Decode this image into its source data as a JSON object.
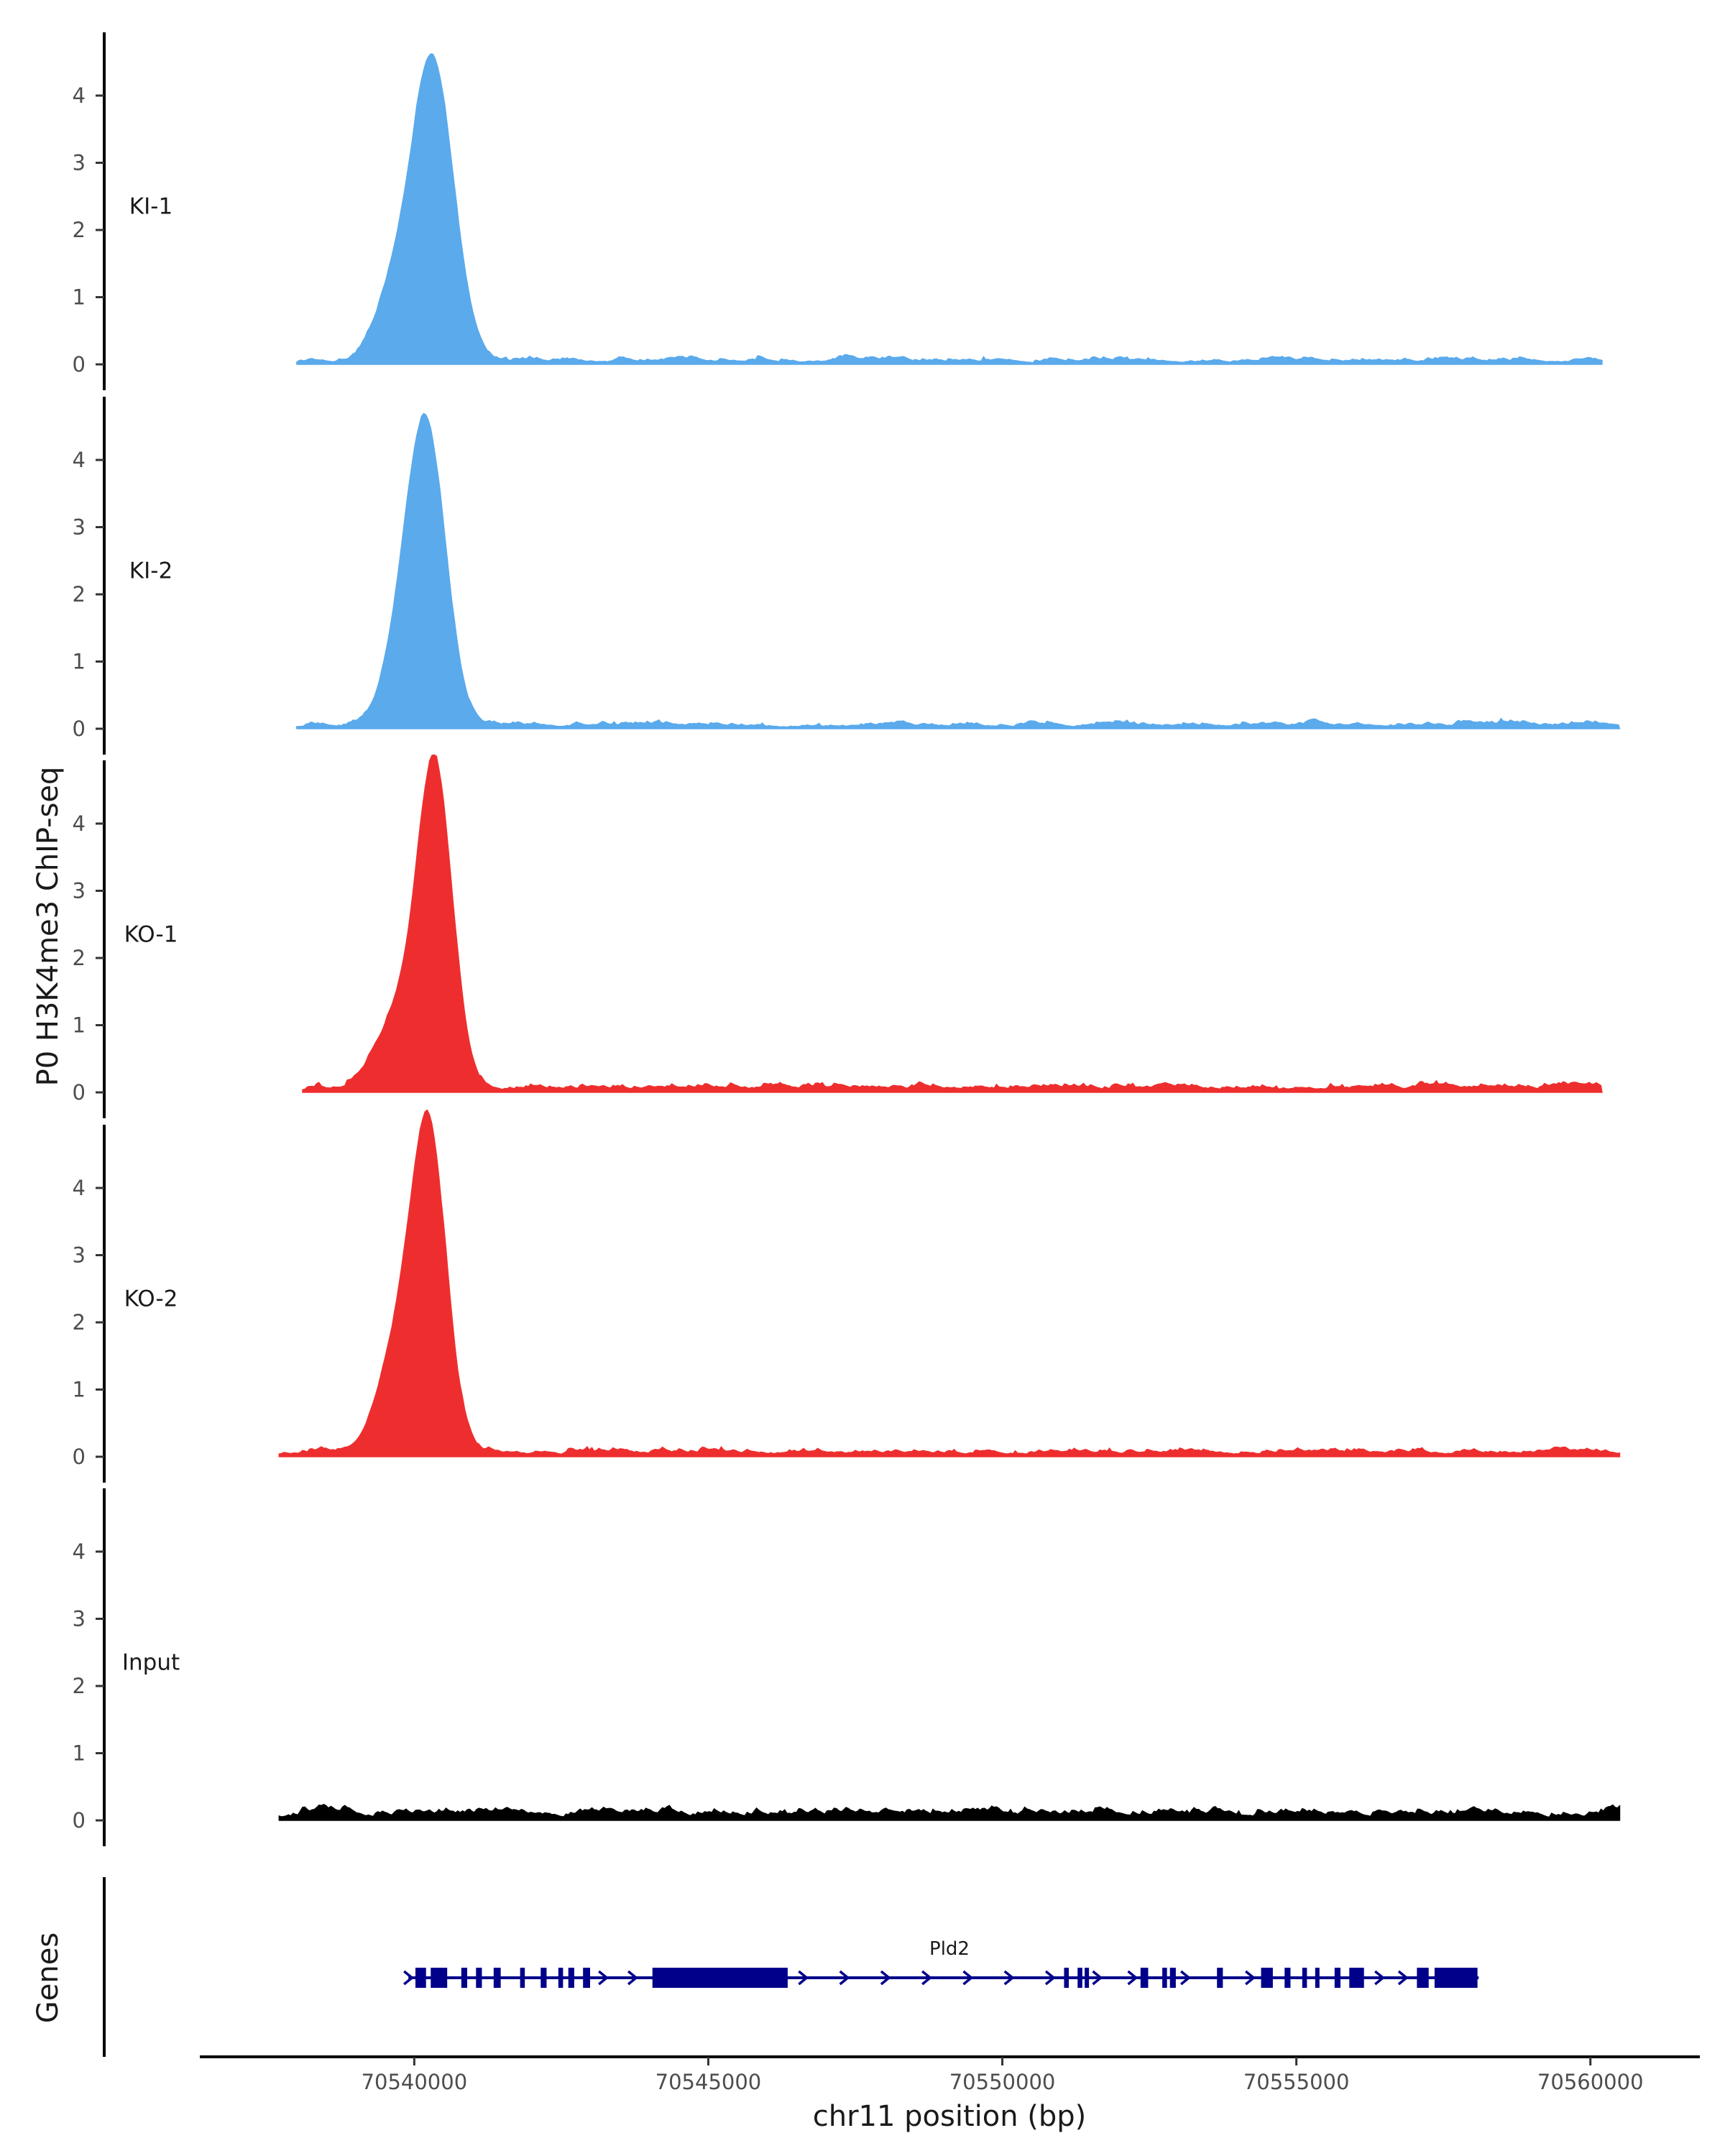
{
  "chart_data": {
    "type": "area",
    "ylabel": "P0 H3K4me3 ChIP-seq",
    "xlabel": "chr11 position (bp)",
    "ylim": [
      0,
      4.9
    ],
    "xlim": [
      70536500,
      70561800
    ],
    "y_ticks": [
      0,
      1,
      2,
      3,
      4
    ],
    "x_ticks": [
      70540000,
      70545000,
      70550000,
      70555000,
      70560000
    ],
    "x_tick_labels": [
      "70540000",
      "70545000",
      "70550000",
      "70555000",
      "70560000"
    ],
    "grid": false,
    "tracks": [
      {
        "name": "KI-1",
        "color": "#5AAAEC",
        "data_range": [
          70538000,
          70560200
        ],
        "peak_center": 70540300,
        "peak_height": 4.5,
        "peak_sigma": 360,
        "shoulder": {
          "x": 70539600,
          "height": 0.8,
          "sigma": 300
        },
        "noise": 0.05
      },
      {
        "name": "KI-2",
        "color": "#5AAAEC",
        "data_range": [
          70538000,
          70560500
        ],
        "peak_center": 70540200,
        "peak_height": 4.45,
        "peak_sigma": 330,
        "shoulder": {
          "x": 70539700,
          "height": 0.7,
          "sigma": 280
        },
        "noise": 0.05
      },
      {
        "name": "KO-1",
        "color": "#EE2E2E",
        "data_range": [
          70538100,
          70560200
        ],
        "peak_center": 70540350,
        "peak_height": 4.7,
        "peak_sigma": 300,
        "shoulder": {
          "x": 70539700,
          "height": 1.0,
          "sigma": 380
        },
        "noise": 0.06
      },
      {
        "name": "KO-2",
        "color": "#EE2E2E",
        "data_range": [
          70537700,
          70560500
        ],
        "peak_center": 70540250,
        "peak_height": 4.6,
        "peak_sigma": 300,
        "shoulder": {
          "x": 70539700,
          "height": 1.4,
          "sigma": 350
        },
        "noise": 0.06
      },
      {
        "name": "Input",
        "color": "#000000",
        "data_range": [
          70537700,
          70560500
        ],
        "peak_center": null,
        "peak_height": 0,
        "peak_sigma": 0,
        "shoulder": null,
        "noise": 0.09
      }
    ],
    "genes_panel": {
      "title": "Genes",
      "gene": {
        "name": "Pld2",
        "start": 70539900,
        "end": 70558100,
        "strand": "+",
        "color": "#00008B",
        "exons": [
          [
            70540020,
            70540200
          ],
          [
            70540280,
            70540560
          ],
          [
            70540800,
            70540900
          ],
          [
            70541050,
            70541150
          ],
          [
            70541350,
            70541470
          ],
          [
            70541800,
            70541880
          ],
          [
            70542150,
            70542250
          ],
          [
            70542450,
            70542530
          ],
          [
            70542620,
            70542720
          ],
          [
            70542870,
            70542990
          ],
          [
            70544050,
            70546350
          ],
          [
            70551050,
            70551130
          ],
          [
            70551280,
            70551360
          ],
          [
            70551400,
            70551470
          ],
          [
            70552350,
            70552480
          ],
          [
            70552720,
            70552800
          ],
          [
            70552850,
            70552950
          ],
          [
            70553650,
            70553750
          ],
          [
            70554400,
            70554600
          ],
          [
            70554800,
            70554900
          ],
          [
            70555100,
            70555180
          ],
          [
            70555320,
            70555380
          ],
          [
            70555650,
            70555750
          ],
          [
            70555900,
            70556150
          ],
          [
            70557050,
            70557250
          ],
          [
            70557350,
            70558080
          ]
        ],
        "arrows": [
          70543200,
          70543700,
          70546600,
          70547300,
          70548000,
          70548700,
          70549400,
          70550100,
          70550800,
          70551600,
          70552200,
          70553100,
          70554200,
          70556400,
          70556800
        ]
      }
    }
  }
}
